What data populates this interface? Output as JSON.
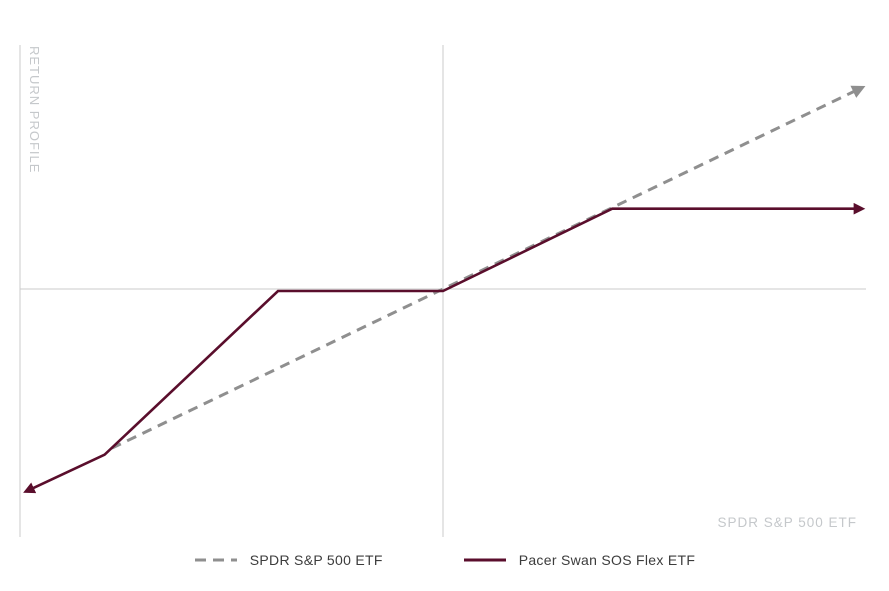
{
  "chart_data": {
    "type": "line",
    "title": "",
    "xlabel": "SPDR S&P 500 ETF",
    "ylabel": "RETURN PROFILE",
    "xlim": [
      -10,
      10
    ],
    "ylim": [
      -12.2,
      12
    ],
    "grid": false,
    "legend_position": "bottom-center",
    "axes": {
      "color": "#cbcbcb",
      "label_color": "#c5c8cb",
      "x_zero_line": true,
      "y_zero_line": true,
      "left_border": true
    },
    "series": [
      {
        "name": "SPDR S&P 500 ETF",
        "style": "dashed",
        "color": "#8f8f8f",
        "width": 3,
        "arrows": {
          "start": false,
          "end": true
        },
        "points": [
          [
            -7.83,
            -7.83
          ],
          [
            9.9,
            9.9
          ]
        ]
      },
      {
        "name": "Pacer Swan SOS Flex ETF",
        "style": "solid",
        "color": "#5a0e2c",
        "width": 2.6,
        "arrows": {
          "start": true,
          "end": true
        },
        "points": [
          [
            -9.85,
            -9.95
          ],
          [
            -8.0,
            -8.15
          ],
          [
            -3.9,
            -0.1
          ],
          [
            0,
            -0.1
          ],
          [
            4.0,
            3.95
          ],
          [
            9.9,
            3.95
          ]
        ]
      }
    ]
  }
}
